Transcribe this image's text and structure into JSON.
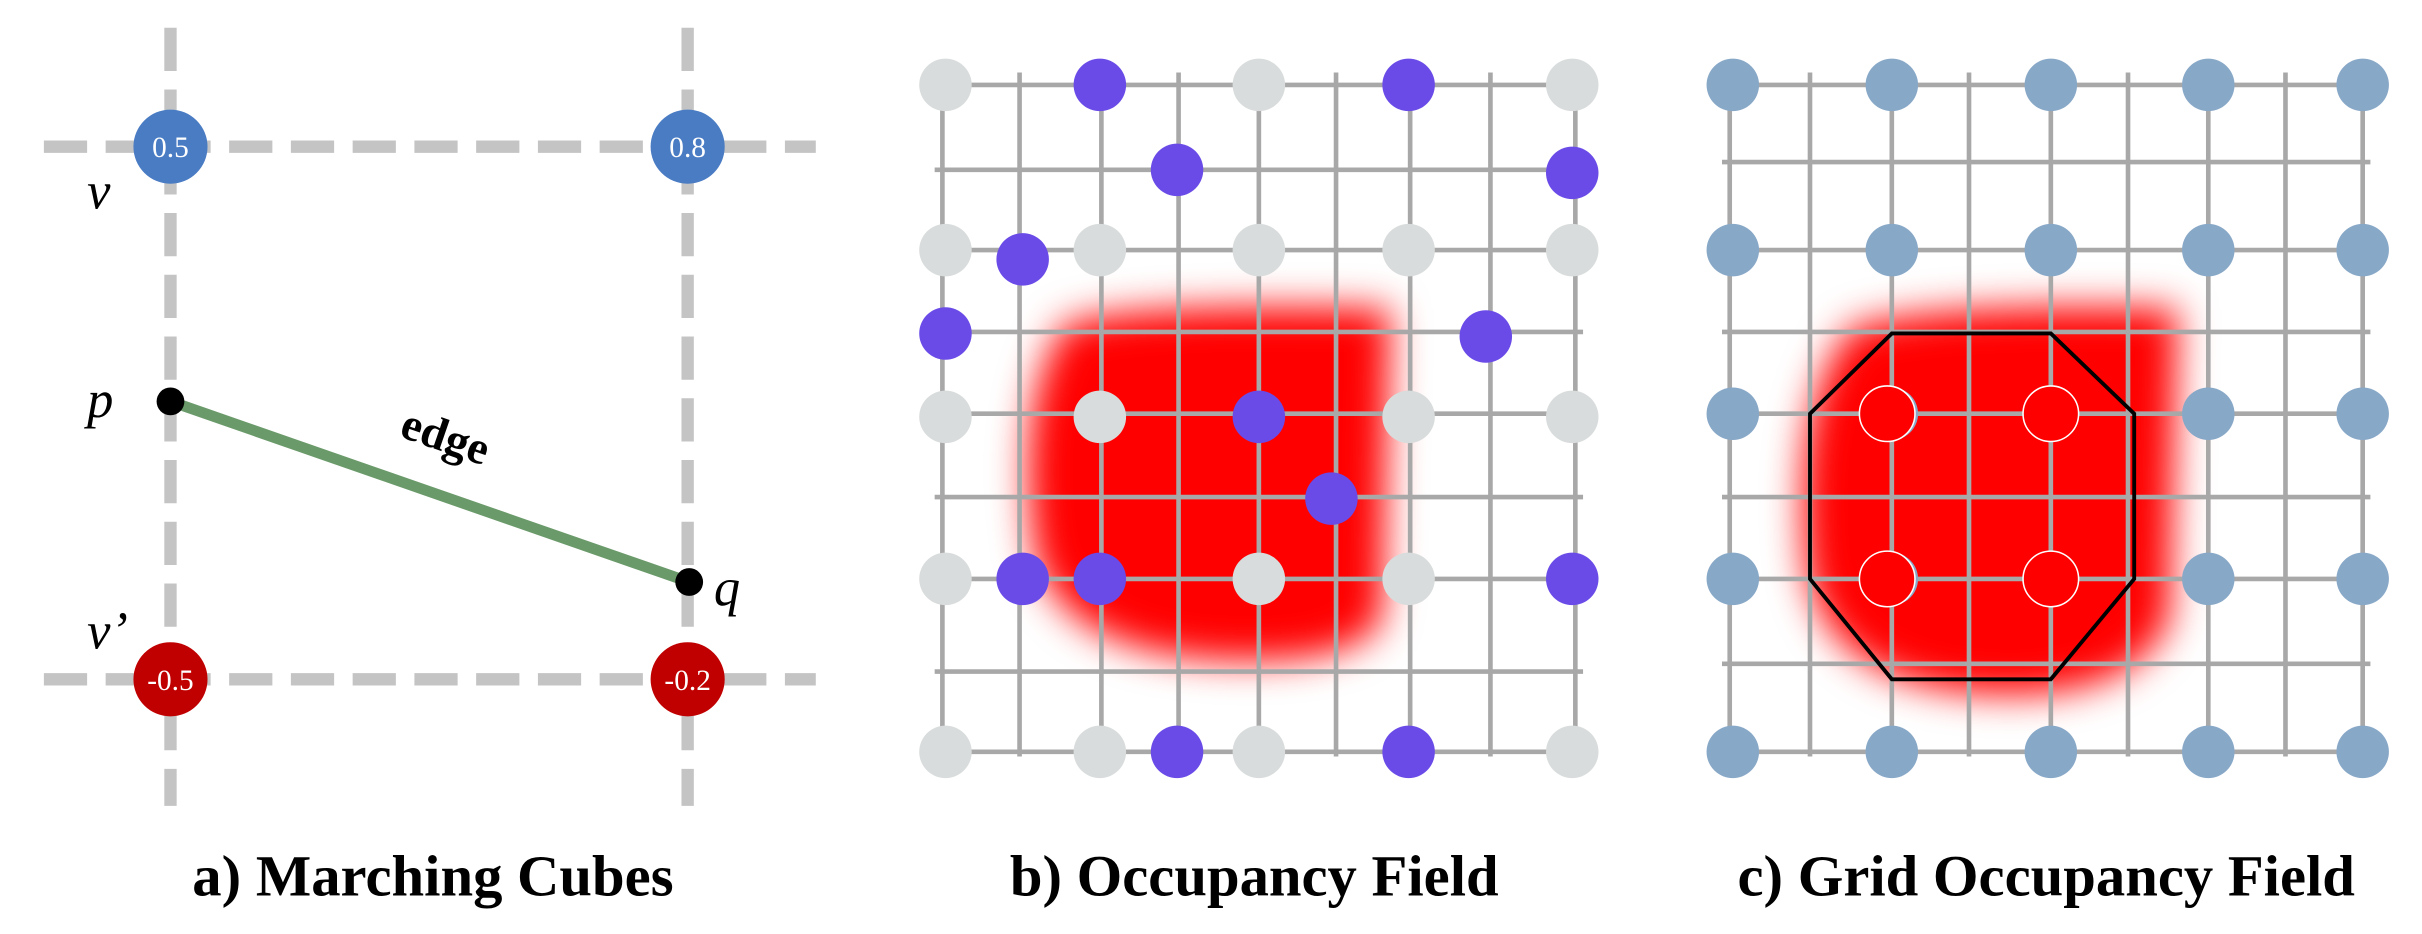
{
  "panel_a": {
    "nodes": [
      "0.5",
      "0.8",
      "-0.5",
      "-0.2"
    ],
    "labels": {
      "v": "v",
      "v_prime": "v’",
      "p": "p",
      "q": "q"
    },
    "edge": "edge",
    "caption": "a) Marching Cubes"
  },
  "panel_b": {
    "caption": "b) Occupancy Field"
  },
  "panel_c": {
    "caption": "c) Grid Occupancy Field"
  }
}
